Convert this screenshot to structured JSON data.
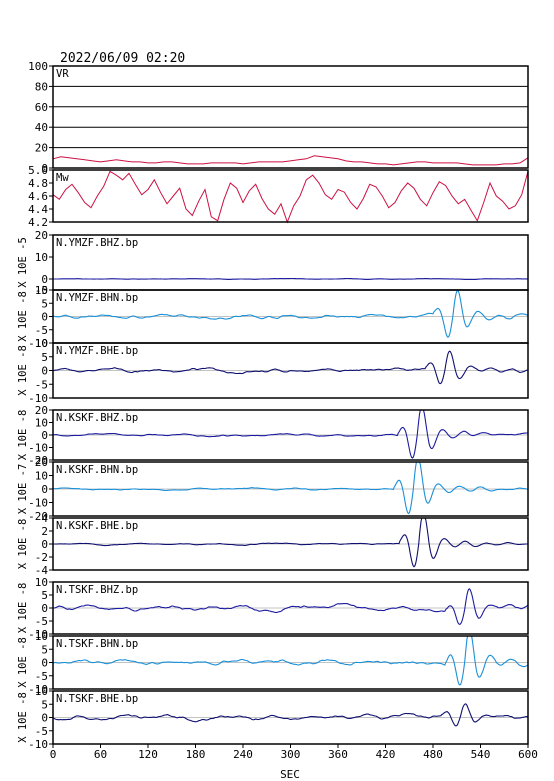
{
  "title": "2022/06/09 02:20",
  "x_axis": {
    "label": "SEC",
    "range": [
      0,
      600
    ],
    "ticks": [
      0,
      60,
      120,
      180,
      240,
      300,
      360,
      420,
      480,
      540,
      600
    ]
  },
  "chart_data": [
    {
      "type": "line",
      "panel": "VR",
      "label": "VR",
      "ylim": [
        0,
        100
      ],
      "yticks": [
        0,
        20,
        40,
        60,
        80,
        100
      ],
      "grid": true,
      "color": "#cc1144",
      "x": [
        0,
        10,
        20,
        30,
        40,
        50,
        60,
        70,
        80,
        90,
        100,
        110,
        120,
        130,
        140,
        150,
        160,
        170,
        180,
        190,
        200,
        210,
        220,
        230,
        240,
        250,
        260,
        270,
        280,
        290,
        300,
        310,
        320,
        330,
        340,
        350,
        360,
        370,
        380,
        390,
        400,
        410,
        420,
        430,
        440,
        450,
        460,
        470,
        480,
        490,
        500,
        510,
        520,
        530,
        540,
        550,
        560,
        570,
        580,
        590,
        600
      ],
      "y": [
        9,
        11,
        10,
        9,
        8,
        7,
        6,
        7,
        8,
        7,
        6,
        6,
        5,
        5,
        6,
        6,
        5,
        4,
        4,
        4,
        5,
        5,
        5,
        5,
        4,
        5,
        6,
        6,
        6,
        6,
        7,
        8,
        9,
        12,
        11,
        10,
        9,
        7,
        6,
        6,
        5,
        4,
        4,
        3,
        4,
        5,
        6,
        6,
        5,
        5,
        5,
        5,
        4,
        3,
        3,
        3,
        3,
        4,
        4,
        5,
        10
      ]
    },
    {
      "type": "line",
      "panel": "Mw",
      "label": "Mw",
      "ylim": [
        4.2,
        5.0
      ],
      "yticks": [
        "4.2",
        "4.4",
        "4.6",
        "4.8",
        "5.0"
      ],
      "grid": false,
      "color": "#cc1144",
      "x": [
        0,
        8,
        16,
        24,
        32,
        40,
        48,
        56,
        64,
        72,
        80,
        88,
        96,
        104,
        112,
        120,
        128,
        136,
        144,
        152,
        160,
        168,
        176,
        184,
        192,
        200,
        208,
        216,
        224,
        232,
        240,
        248,
        256,
        264,
        272,
        280,
        288,
        296,
        304,
        312,
        320,
        328,
        336,
        344,
        352,
        360,
        368,
        376,
        384,
        392,
        400,
        408,
        416,
        424,
        432,
        440,
        448,
        456,
        464,
        472,
        480,
        488,
        496,
        504,
        512,
        520,
        528,
        536,
        544,
        552,
        560,
        568,
        576,
        584,
        592,
        600
      ],
      "y": [
        4.62,
        4.55,
        4.7,
        4.78,
        4.65,
        4.5,
        4.42,
        4.6,
        4.75,
        4.98,
        4.92,
        4.85,
        4.95,
        4.78,
        4.62,
        4.7,
        4.85,
        4.65,
        4.48,
        4.6,
        4.72,
        4.4,
        4.3,
        4.52,
        4.7,
        4.28,
        4.22,
        4.55,
        4.8,
        4.72,
        4.5,
        4.68,
        4.78,
        4.56,
        4.4,
        4.32,
        4.48,
        4.2,
        4.45,
        4.6,
        4.85,
        4.92,
        4.8,
        4.62,
        4.55,
        4.7,
        4.66,
        4.5,
        4.4,
        4.56,
        4.78,
        4.74,
        4.6,
        4.42,
        4.5,
        4.68,
        4.8,
        4.72,
        4.55,
        4.45,
        4.65,
        4.82,
        4.76,
        4.6,
        4.48,
        4.55,
        4.38,
        4.22,
        4.5,
        4.8,
        4.6,
        4.52,
        4.4,
        4.45,
        4.62,
        4.98
      ]
    },
    {
      "type": "line",
      "panel": "wave",
      "label": "N.YMZF.BHZ.bp",
      "ylabel": "X 10E -5",
      "ylim": [
        -5,
        20
      ],
      "yticks": [
        -5,
        0,
        10,
        20
      ],
      "color": "#1c1ca0",
      "event": 0,
      "amp": 0.5,
      "noise": 0.12
    },
    {
      "type": "line",
      "panel": "wave",
      "label": "N.YMZF.BHN.bp",
      "ylabel": "X 10E -8",
      "ylim": [
        -10,
        10
      ],
      "yticks": [
        -10,
        -5,
        0,
        5,
        10
      ],
      "color": "#1a90d8",
      "event": 505,
      "amp": 8,
      "noise": 0.6
    },
    {
      "type": "line",
      "panel": "wave",
      "label": "N.YMZF.BHE.bp",
      "ylabel": "X 10E -8",
      "ylim": [
        -10,
        10
      ],
      "yticks": [
        -10,
        -5,
        0,
        5,
        10
      ],
      "color": "#101070",
      "event": 495,
      "amp": 6,
      "noise": 0.6
    },
    {
      "type": "line",
      "panel": "wave",
      "label": "N.KSKF.BHZ.bp",
      "ylabel": "X 10E -8",
      "ylim": [
        -20,
        20
      ],
      "yticks": [
        -20,
        -10,
        0,
        10,
        20
      ],
      "color": "#1c1ca0",
      "event": 460,
      "amp": 20,
      "noise": 0.8
    },
    {
      "type": "line",
      "panel": "wave",
      "label": "N.KSKF.BHN.bp",
      "ylabel": "X 10E -7",
      "ylim": [
        -20,
        20
      ],
      "yticks": [
        -20,
        -10,
        0,
        10,
        20
      ],
      "color": "#1a90d8",
      "event": 455,
      "amp": 20,
      "noise": 0.6
    },
    {
      "type": "line",
      "panel": "wave",
      "label": "N.KSKF.BHE.bp",
      "ylabel": "X 10E -8",
      "ylim": [
        -4,
        4
      ],
      "yticks": [
        -4,
        -2,
        0,
        2,
        4
      ],
      "color": "#101070",
      "event": 462,
      "amp": 4,
      "noise": 0.1
    },
    {
      "type": "line",
      "panel": "wave",
      "label": "N.TSKF.BHZ.bp",
      "ylabel": "X 10E -8",
      "ylim": [
        -10,
        10
      ],
      "yticks": [
        -10,
        -5,
        0,
        5,
        10
      ],
      "color": "#1c1ca0",
      "event": 520,
      "amp": 6,
      "noise": 0.9
    },
    {
      "type": "line",
      "panel": "wave",
      "label": "N.TSKF.BHN.bp",
      "ylabel": "X 10E -8",
      "ylim": [
        -10,
        10
      ],
      "yticks": [
        -10,
        -5,
        0,
        5,
        10
      ],
      "color": "#1a90d8",
      "event": 520,
      "amp": 10,
      "noise": 0.8
    },
    {
      "type": "line",
      "panel": "wave",
      "label": "N.TSKF.BHE.bp",
      "ylabel": "X 10E -8",
      "ylim": [
        -10,
        10
      ],
      "yticks": [
        -10,
        -5,
        0,
        5,
        10
      ],
      "color": "#101070",
      "event": 515,
      "amp": 4,
      "noise": 0.8
    }
  ]
}
